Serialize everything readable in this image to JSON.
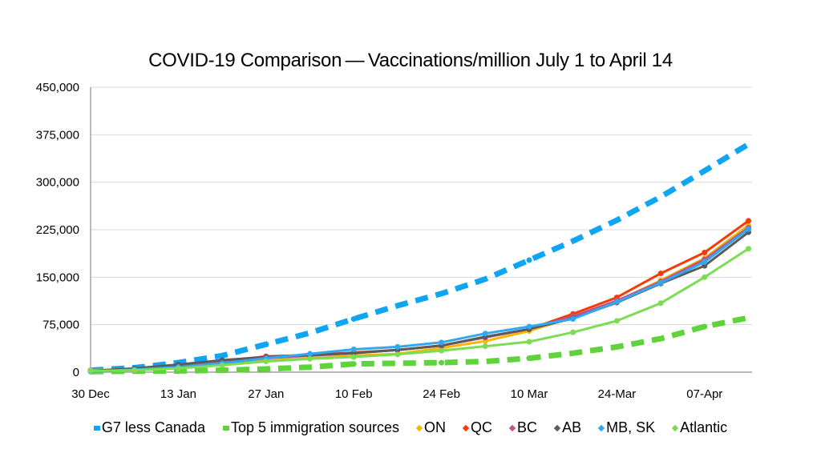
{
  "chart_data": {
    "type": "line",
    "title": "COVID-19 Comparison — Vaccinations/million July 1 to April 14",
    "xlabel": "",
    "ylabel": "",
    "ylim": [
      0,
      450000
    ],
    "yticks": [
      0,
      75000,
      150000,
      225000,
      300000,
      375000,
      450000
    ],
    "ytick_labels": [
      "0",
      "75,000",
      "150,000",
      "225,000",
      "300,000",
      "375,000",
      "450,000"
    ],
    "x": [
      "30 Dec",
      "06 Jan",
      "13 Jan",
      "20 Jan",
      "27 Jan",
      "03 Feb",
      "10 Feb",
      "17 Feb",
      "24 Feb",
      "03 Mar",
      "10 Mar",
      "17 Mar",
      "24 Mar",
      "31 Mar",
      "07 Apr",
      "14 Apr"
    ],
    "xtick_labels": [
      "30 Dec",
      "13 Jan",
      "27 Jan",
      "10 Feb",
      "24 Feb",
      "10 Mar",
      "24-Mar",
      "07-Apr"
    ],
    "xtick_indices": [
      0,
      2,
      4,
      6,
      8,
      10,
      12,
      14
    ],
    "grid": true,
    "legend_position": "bottom",
    "series": [
      {
        "name": "G7 less Canada",
        "color": "#0ea5f2",
        "style": "dashed",
        "marker": "square",
        "values": [
          3000,
          7000,
          15000,
          26000,
          44000,
          62000,
          84000,
          105000,
          124000,
          147000,
          177000,
          207000,
          240000,
          277000,
          318000,
          360000
        ]
      },
      {
        "name": "Top 5 immigration sources",
        "color": "#5fd33a",
        "style": "dashed",
        "marker": "square",
        "values": [
          1000,
          1500,
          2000,
          3000,
          5000,
          8000,
          13000,
          14000,
          15000,
          17000,
          22000,
          30000,
          40000,
          53000,
          72000,
          86000
        ]
      },
      {
        "name": "ON",
        "color": "#f5b700",
        "style": "solid",
        "marker": "diamond",
        "values": [
          3000,
          5000,
          9000,
          14000,
          18000,
          22000,
          26000,
          29000,
          38000,
          49000,
          65000,
          87000,
          112000,
          145000,
          180000,
          232000
        ]
      },
      {
        "name": "QC",
        "color": "#f53b0a",
        "style": "solid",
        "marker": "diamond",
        "values": [
          2000,
          5000,
          11000,
          17000,
          25000,
          27000,
          31000,
          35000,
          42000,
          55000,
          68000,
          92000,
          118000,
          156000,
          189000,
          239000
        ]
      },
      {
        "name": "BC",
        "color": "#c2528e",
        "style": "solid",
        "marker": "diamond",
        "values": [
          2000,
          5000,
          10000,
          16000,
          22000,
          26000,
          30000,
          35000,
          42000,
          55000,
          68000,
          88000,
          113000,
          143000,
          178000,
          228000
        ]
      },
      {
        "name": "AB",
        "color": "#5b5b5b",
        "style": "solid",
        "marker": "diamond",
        "values": [
          2000,
          6000,
          12000,
          19000,
          24000,
          27000,
          30000,
          35000,
          42000,
          56000,
          68000,
          85000,
          110000,
          140000,
          168000,
          221000
        ]
      },
      {
        "name": "MB, SK",
        "color": "#2fa9f5",
        "style": "solid",
        "marker": "diamond",
        "values": [
          1000,
          4000,
          8000,
          14000,
          22000,
          29000,
          36000,
          40000,
          47000,
          61000,
          72000,
          84000,
          111000,
          141000,
          174000,
          226000
        ]
      },
      {
        "name": "Atlantic",
        "color": "#7ddc55",
        "style": "solid",
        "marker": "diamond",
        "values": [
          2000,
          3000,
          6000,
          11000,
          17000,
          21000,
          24000,
          28000,
          34000,
          41000,
          48000,
          63000,
          81000,
          109000,
          150000,
          195000
        ]
      }
    ]
  }
}
